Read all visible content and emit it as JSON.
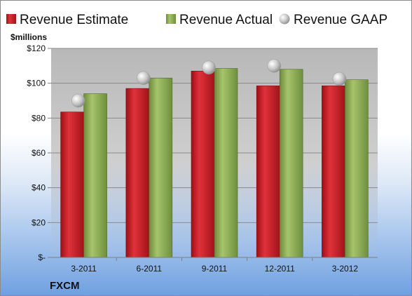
{
  "chart_data": {
    "type": "bar",
    "ylabel": "$millions",
    "footer": "FXCM",
    "categories": [
      "3-2011",
      "6-2011",
      "9-2011",
      "12-2011",
      "3-2012"
    ],
    "ylim": [
      0,
      120
    ],
    "y_ticks": [
      {
        "value": 0,
        "label": "$-"
      },
      {
        "value": 20,
        "label": "$20"
      },
      {
        "value": 40,
        "label": "$40"
      },
      {
        "value": 60,
        "label": "$60"
      },
      {
        "value": 80,
        "label": "$80"
      },
      {
        "value": 100,
        "label": "$100"
      },
      {
        "value": 120,
        "label": "$120"
      }
    ],
    "grid": true,
    "legend_position": "top",
    "series": [
      {
        "name": "Revenue Estimate",
        "kind": "bar",
        "color": "#c0151e",
        "values": [
          83.5,
          97,
          107,
          98.5,
          98.5
        ]
      },
      {
        "name": "Revenue Actual",
        "kind": "bar",
        "color": "#86a84f",
        "values": [
          94,
          103,
          108.5,
          108,
          102
        ]
      },
      {
        "name": "Revenue GAAP",
        "kind": "marker",
        "color": "#b3b3b3",
        "values": [
          90,
          103,
          109,
          110,
          102.5
        ]
      }
    ]
  }
}
